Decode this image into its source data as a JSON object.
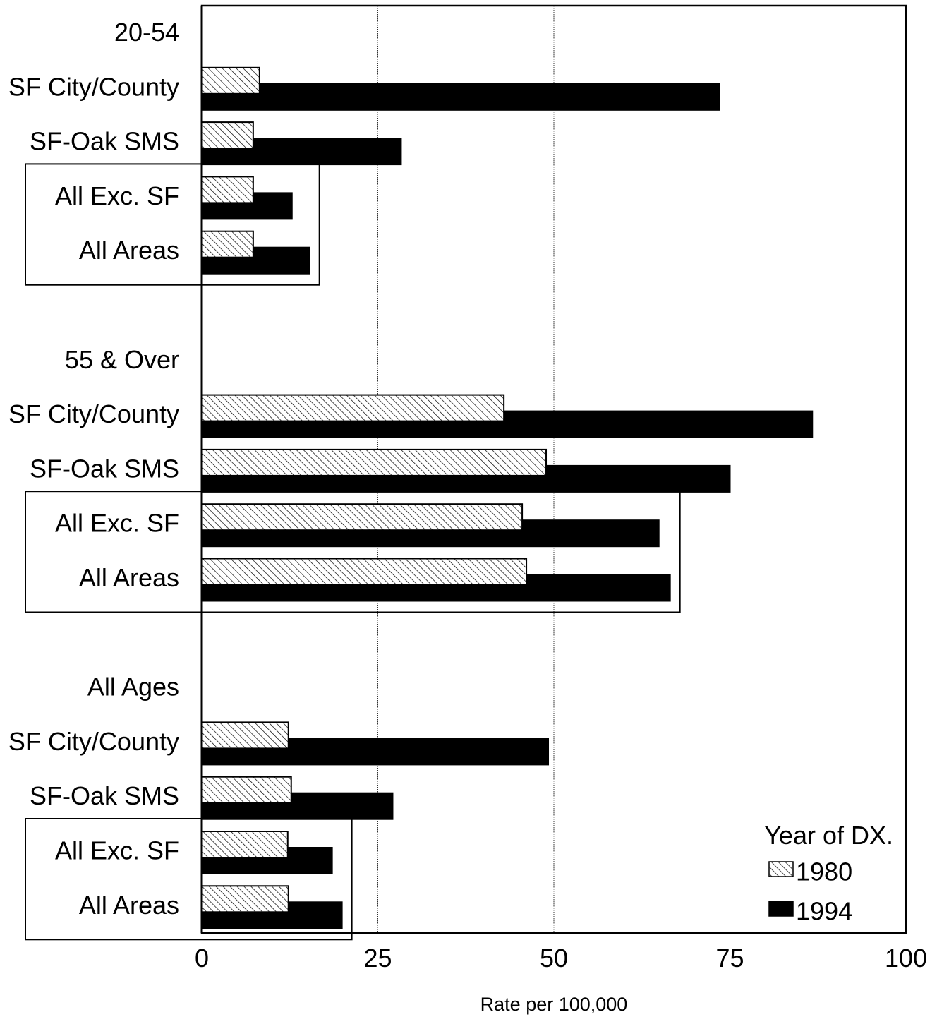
{
  "chart_data": {
    "type": "bar",
    "orientation": "horizontal",
    "xlabel": "Rate per 100,000",
    "xlim": [
      0,
      100
    ],
    "xticks": [
      "0",
      "25",
      "50",
      "75",
      "100"
    ],
    "grid": "vertical dotted",
    "legend": {
      "title": "Year of DX.",
      "placement": "bottom-right",
      "entries": [
        {
          "name": "1980",
          "style": "hatched"
        },
        {
          "name": "1994",
          "style": "solid"
        }
      ]
    },
    "groups": [
      {
        "label": "20-54",
        "rows": [
          {
            "label": "SF City/County",
            "v1980": 8.2,
            "v1994": 73.6
          },
          {
            "label": "SF-Oak SMS",
            "v1980": 7.3,
            "v1994": 28.4
          },
          {
            "label": "All Exc. SF",
            "v1980": 7.3,
            "v1994": 12.9,
            "boxed": true
          },
          {
            "label": "All Areas",
            "v1980": 7.3,
            "v1994": 15.4,
            "boxed": true
          }
        ]
      },
      {
        "label": "55 & Over",
        "rows": [
          {
            "label": "SF City/County",
            "v1980": 42.9,
            "v1994": 86.8
          },
          {
            "label": "SF-Oak SMS",
            "v1980": 48.9,
            "v1994": 75.1
          },
          {
            "label": "All Exc. SF",
            "v1980": 45.5,
            "v1994": 65.0,
            "boxed": true
          },
          {
            "label": "All Areas",
            "v1980": 46.1,
            "v1994": 66.6,
            "boxed": true
          }
        ]
      },
      {
        "label": "All Ages",
        "rows": [
          {
            "label": "SF City/County",
            "v1980": 12.3,
            "v1994": 49.3
          },
          {
            "label": "SF-Oak SMS",
            "v1980": 12.7,
            "v1994": 27.2
          },
          {
            "label": "All Exc. SF",
            "v1980": 12.2,
            "v1994": 18.6,
            "boxed": true
          },
          {
            "label": "All Areas",
            "v1980": 12.3,
            "v1994": 20.0,
            "boxed": true
          }
        ]
      }
    ]
  }
}
